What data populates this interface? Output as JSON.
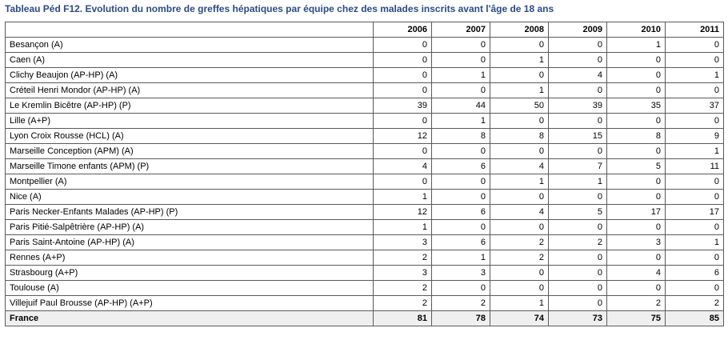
{
  "title": "Tableau Péd F12. Evolution du nombre de greffes hépatiques par équipe chez des malades inscrits avant l'âge de 18 ans",
  "columns": [
    "",
    "2006",
    "2007",
    "2008",
    "2009",
    "2010",
    "2011"
  ],
  "rows": [
    {
      "name": "Besançon (A)",
      "values": [
        "0",
        "0",
        "0",
        "0",
        "1",
        "0"
      ]
    },
    {
      "name": "Caen (A)",
      "values": [
        "0",
        "0",
        "1",
        "0",
        "0",
        "0"
      ]
    },
    {
      "name": "Clichy Beaujon (AP-HP) (A)",
      "values": [
        "0",
        "1",
        "0",
        "4",
        "0",
        "1"
      ]
    },
    {
      "name": "Créteil Henri Mondor (AP-HP) (A)",
      "values": [
        "0",
        "0",
        "1",
        "0",
        "0",
        "0"
      ]
    },
    {
      "name": "Le Kremlin Bicêtre (AP-HP) (P)",
      "values": [
        "39",
        "44",
        "50",
        "39",
        "35",
        "37"
      ]
    },
    {
      "name": "Lille (A+P)",
      "values": [
        "0",
        "1",
        "0",
        "0",
        "0",
        "0"
      ]
    },
    {
      "name": "Lyon Croix Rousse (HCL) (A)",
      "values": [
        "12",
        "8",
        "8",
        "15",
        "8",
        "9"
      ]
    },
    {
      "name": "Marseille Conception (APM) (A)",
      "values": [
        "0",
        "0",
        "0",
        "0",
        "0",
        "1"
      ]
    },
    {
      "name": "Marseille Timone enfants (APM) (P)",
      "values": [
        "4",
        "6",
        "4",
        "7",
        "5",
        "11"
      ]
    },
    {
      "name": "Montpellier (A)",
      "values": [
        "0",
        "0",
        "1",
        "1",
        "0",
        "0"
      ]
    },
    {
      "name": "Nice (A)",
      "values": [
        "1",
        "0",
        "0",
        "0",
        "0",
        "0"
      ]
    },
    {
      "name": "Paris Necker-Enfants Malades (AP-HP) (P)",
      "values": [
        "12",
        "6",
        "4",
        "5",
        "17",
        "17"
      ]
    },
    {
      "name": "Paris Pitié-Salpêtrière (AP-HP) (A)",
      "values": [
        "1",
        "0",
        "0",
        "0",
        "0",
        "0"
      ]
    },
    {
      "name": "Paris Saint-Antoine (AP-HP) (A)",
      "values": [
        "3",
        "6",
        "2",
        "2",
        "3",
        "1"
      ]
    },
    {
      "name": "Rennes (A+P)",
      "values": [
        "2",
        "1",
        "2",
        "0",
        "0",
        "0"
      ]
    },
    {
      "name": "Strasbourg (A+P)",
      "values": [
        "3",
        "3",
        "0",
        "0",
        "4",
        "6"
      ]
    },
    {
      "name": "Toulouse (A)",
      "values": [
        "2",
        "0",
        "0",
        "0",
        "0",
        "0"
      ]
    },
    {
      "name": "Villejuif Paul Brousse (AP-HP) (A+P)",
      "values": [
        "2",
        "2",
        "1",
        "0",
        "2",
        "2"
      ]
    }
  ],
  "total": {
    "name": "France",
    "values": [
      "81",
      "78",
      "74",
      "73",
      "75",
      "85"
    ]
  }
}
